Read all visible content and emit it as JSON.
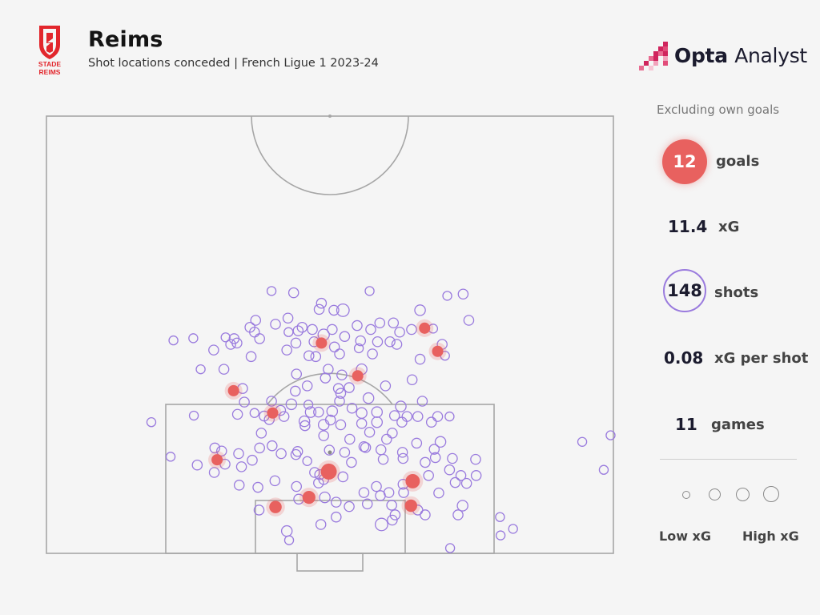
{
  "header": {
    "title": "Reims",
    "subtitle": "Shot locations conceded | French Ligue 1 2023-24",
    "club_logo_text": [
      "STADE",
      "REIMS"
    ],
    "brand_name": "Opta",
    "brand_suffix": "Analyst"
  },
  "stats": {
    "note": "Excluding own goals",
    "goals_value": "12",
    "goals_label": "goals",
    "xg_value": "11.4",
    "xg_label": "xG",
    "shots_value": "148",
    "shots_label": "shots",
    "xg_per_shot_value": "0.08",
    "xg_per_shot_label": "xG per shot",
    "games_value": "11",
    "games_label": "games"
  },
  "legend": {
    "low_label": "Low xG",
    "high_label": "High xG"
  },
  "colors": {
    "goal": "#e8615f",
    "shot": "#9a7bde",
    "pitch_line": "#a6a6a6",
    "brand": "#d0245d"
  },
  "chart_data": {
    "type": "scatter",
    "coordinate_system": "pitch half, goal line at y=100",
    "series": [
      {
        "name": "Goals",
        "points": [
          [
            48.5,
            51.9,
            0.05
          ],
          [
            66.7,
            48.5,
            0.05
          ],
          [
            54.9,
            59.4,
            0.05
          ],
          [
            33.0,
            62.8,
            0.05
          ],
          [
            69.0,
            53.8,
            0.05
          ],
          [
            39.9,
            67.9,
            0.05
          ],
          [
            30.1,
            78.6,
            0.05
          ],
          [
            49.8,
            81.3,
            0.15
          ],
          [
            64.6,
            83.5,
            0.11
          ],
          [
            46.3,
            87.2,
            0.08
          ],
          [
            40.4,
            89.4,
            0.07
          ],
          [
            64.3,
            89.1,
            0.07
          ]
        ]
      },
      {
        "name": "Shots",
        "points": [
          [
            39.7,
            40.0,
            0.02
          ],
          [
            43.6,
            40.4,
            0.03
          ],
          [
            57.0,
            40.0,
            0.02
          ],
          [
            73.5,
            40.7,
            0.03
          ],
          [
            70.7,
            41.1,
            0.02
          ],
          [
            48.5,
            42.8,
            0.03
          ],
          [
            52.3,
            44.4,
            0.07
          ],
          [
            65.9,
            44.4,
            0.04
          ],
          [
            50.7,
            44.4,
            0.03
          ],
          [
            48.1,
            44.2,
            0.03
          ],
          [
            42.6,
            46.2,
            0.03
          ],
          [
            36.9,
            46.7,
            0.03
          ],
          [
            74.5,
            46.7,
            0.03
          ],
          [
            58.8,
            47.3,
            0.03
          ],
          [
            61.2,
            47.3,
            0.03
          ],
          [
            40.4,
            47.6,
            0.03
          ],
          [
            54.8,
            47.9,
            0.03
          ],
          [
            35.9,
            48.3,
            0.03
          ],
          [
            45.1,
            48.3,
            0.03
          ],
          [
            50.4,
            48.8,
            0.03
          ],
          [
            57.2,
            48.8,
            0.03
          ],
          [
            64.4,
            48.8,
            0.03
          ],
          [
            68.2,
            48.6,
            0.02
          ],
          [
            44.4,
            49.1,
            0.03
          ],
          [
            46.9,
            48.8,
            0.03
          ],
          [
            62.3,
            49.4,
            0.03
          ],
          [
            36.7,
            49.4,
            0.03
          ],
          [
            42.7,
            49.4,
            0.02
          ],
          [
            48.9,
            50.0,
            0.05
          ],
          [
            52.6,
            50.4,
            0.03
          ],
          [
            37.6,
            50.9,
            0.03
          ],
          [
            33.1,
            50.9,
            0.03
          ],
          [
            31.6,
            50.6,
            0.02
          ],
          [
            22.4,
            51.3,
            0.02
          ],
          [
            25.9,
            50.8,
            0.02
          ],
          [
            47.2,
            51.6,
            0.03
          ],
          [
            55.4,
            51.4,
            0.03
          ],
          [
            58.4,
            51.6,
            0.03
          ],
          [
            60.6,
            51.6,
            0.03
          ],
          [
            61.8,
            52.2,
            0.03
          ],
          [
            32.5,
            52.2,
            0.03
          ],
          [
            33.6,
            51.9,
            0.03
          ],
          [
            44.0,
            51.9,
            0.03
          ],
          [
            69.8,
            52.2,
            0.03
          ],
          [
            50.8,
            52.8,
            0.03
          ],
          [
            55.1,
            53.1,
            0.02
          ],
          [
            29.5,
            53.5,
            0.03
          ],
          [
            42.4,
            53.5,
            0.03
          ],
          [
            47.5,
            55.0,
            0.03
          ],
          [
            51.7,
            54.4,
            0.03
          ],
          [
            57.5,
            54.4,
            0.03
          ],
          [
            46.3,
            54.8,
            0.03
          ],
          [
            70.3,
            54.8,
            0.02
          ],
          [
            65.9,
            55.6,
            0.03
          ],
          [
            36.1,
            55.0,
            0.03
          ],
          [
            27.2,
            57.9,
            0.02
          ],
          [
            31.3,
            57.9,
            0.03
          ],
          [
            49.7,
            57.9,
            0.03
          ],
          [
            55.6,
            57.9,
            0.04
          ],
          [
            44.1,
            59.0,
            0.03
          ],
          [
            52.1,
            59.2,
            0.03
          ],
          [
            49.2,
            59.9,
            0.03
          ],
          [
            64.5,
            60.3,
            0.03
          ],
          [
            46.0,
            61.7,
            0.03
          ],
          [
            51.5,
            62.3,
            0.03
          ],
          [
            53.4,
            62.1,
            0.03
          ],
          [
            59.8,
            61.7,
            0.03
          ],
          [
            34.6,
            62.3,
            0.03
          ],
          [
            43.9,
            62.9,
            0.03
          ],
          [
            51.9,
            63.4,
            0.03
          ],
          [
            56.8,
            64.5,
            0.04
          ],
          [
            51.7,
            65.2,
            0.03
          ],
          [
            66.3,
            65.2,
            0.03
          ],
          [
            39.7,
            65.2,
            0.03
          ],
          [
            34.9,
            65.4,
            0.03
          ],
          [
            46.2,
            66.0,
            0.02
          ],
          [
            43.2,
            65.9,
            0.04
          ],
          [
            62.5,
            66.4,
            0.04
          ],
          [
            53.9,
            66.8,
            0.03
          ],
          [
            50.4,
            67.5,
            0.04
          ],
          [
            46.6,
            67.7,
            0.04
          ],
          [
            48.0,
            67.7,
            0.03
          ],
          [
            41.3,
            67.3,
            0.03
          ],
          [
            55.6,
            67.9,
            0.04
          ],
          [
            58.3,
            67.7,
            0.04
          ],
          [
            41.9,
            68.7,
            0.03
          ],
          [
            38.4,
            68.6,
            0.03
          ],
          [
            71.1,
            68.7,
            0.02
          ],
          [
            63.6,
            68.7,
            0.03
          ],
          [
            61.4,
            68.5,
            0.03
          ],
          [
            65.5,
            68.7,
            0.03
          ],
          [
            69.0,
            68.7,
            0.03
          ],
          [
            33.7,
            68.2,
            0.03
          ],
          [
            36.7,
            67.9,
            0.02
          ],
          [
            45.5,
            69.8,
            0.04
          ],
          [
            50.1,
            69.5,
            0.03
          ],
          [
            48.9,
            70.6,
            0.04
          ],
          [
            55.6,
            70.3,
            0.03
          ],
          [
            58.3,
            70.0,
            0.04
          ],
          [
            62.7,
            70.0,
            0.03
          ],
          [
            67.9,
            70.0,
            0.03
          ],
          [
            39.3,
            69.4,
            0.03
          ],
          [
            45.6,
            70.8,
            0.03
          ],
          [
            51.9,
            70.6,
            0.03
          ],
          [
            48.9,
            73.1,
            0.03
          ],
          [
            57.0,
            72.3,
            0.03
          ],
          [
            61.0,
            72.5,
            0.03
          ],
          [
            37.9,
            72.5,
            0.03
          ],
          [
            53.5,
            73.9,
            0.03
          ],
          [
            60.0,
            73.9,
            0.03
          ],
          [
            69.5,
            74.5,
            0.04
          ],
          [
            65.3,
            74.8,
            0.03
          ],
          [
            39.8,
            75.4,
            0.03
          ],
          [
            56.0,
            75.6,
            0.03
          ],
          [
            37.6,
            75.9,
            0.03
          ],
          [
            29.7,
            75.9,
            0.03
          ],
          [
            30.9,
            76.6,
            0.03
          ],
          [
            33.9,
            77.2,
            0.03
          ],
          [
            41.4,
            77.2,
            0.03
          ],
          [
            44.0,
            77.4,
            0.03
          ],
          [
            44.3,
            76.7,
            0.03
          ],
          [
            49.9,
            76.4,
            0.03
          ],
          [
            52.6,
            76.9,
            0.03
          ],
          [
            56.3,
            75.8,
            0.03
          ],
          [
            59.0,
            76.3,
            0.03
          ],
          [
            62.8,
            76.9,
            0.03
          ],
          [
            68.4,
            76.2,
            0.03
          ],
          [
            21.9,
            77.9,
            0.02
          ],
          [
            36.3,
            78.7,
            0.03
          ],
          [
            46.0,
            78.9,
            0.02
          ],
          [
            59.4,
            78.5,
            0.03
          ],
          [
            62.9,
            78.3,
            0.03
          ],
          [
            68.6,
            78.1,
            0.03
          ],
          [
            71.6,
            78.3,
            0.03
          ],
          [
            75.7,
            78.5,
            0.03
          ],
          [
            66.8,
            79.2,
            0.03
          ],
          [
            53.8,
            79.2,
            0.03
          ],
          [
            34.4,
            80.2,
            0.03
          ],
          [
            31.5,
            79.6,
            0.03
          ],
          [
            26.6,
            79.8,
            0.03
          ],
          [
            29.6,
            81.5,
            0.03
          ],
          [
            47.3,
            81.5,
            0.03
          ],
          [
            48.2,
            82.0,
            0.03
          ],
          [
            52.3,
            82.5,
            0.03
          ],
          [
            67.4,
            82.2,
            0.03
          ],
          [
            73.1,
            82.2,
            0.03
          ],
          [
            75.8,
            82.2,
            0.03
          ],
          [
            71.1,
            80.9,
            0.03
          ],
          [
            48.9,
            83.1,
            0.03
          ],
          [
            40.3,
            83.4,
            0.03
          ],
          [
            48.0,
            83.9,
            0.03
          ],
          [
            62.9,
            84.2,
            0.03
          ],
          [
            58.2,
            84.7,
            0.03
          ],
          [
            72.1,
            83.8,
            0.03
          ],
          [
            74.1,
            84.0,
            0.03
          ],
          [
            34.0,
            84.4,
            0.03
          ],
          [
            37.3,
            84.9,
            0.03
          ],
          [
            44.1,
            84.7,
            0.03
          ],
          [
            56.0,
            86.1,
            0.03
          ],
          [
            60.4,
            86.1,
            0.03
          ],
          [
            63.0,
            86.1,
            0.03
          ],
          [
            69.2,
            86.2,
            0.03
          ],
          [
            58.9,
            86.8,
            0.03
          ],
          [
            44.5,
            87.6,
            0.03
          ],
          [
            49.1,
            87.2,
            0.04
          ],
          [
            51.1,
            88.3,
            0.03
          ],
          [
            53.4,
            89.3,
            0.03
          ],
          [
            56.6,
            88.7,
            0.03
          ],
          [
            60.9,
            89.0,
            0.03
          ],
          [
            73.4,
            89.1,
            0.04
          ],
          [
            65.5,
            90.1,
            0.03
          ],
          [
            37.5,
            90.1,
            0.03
          ],
          [
            66.8,
            91.2,
            0.03
          ],
          [
            72.6,
            91.2,
            0.03
          ],
          [
            51.1,
            91.7,
            0.03
          ],
          [
            61.5,
            91.2,
            0.03
          ],
          [
            61.0,
            92.4,
            0.03
          ],
          [
            59.1,
            93.4,
            0.07
          ],
          [
            48.4,
            93.4,
            0.03
          ],
          [
            42.4,
            94.9,
            0.04
          ],
          [
            80.0,
            91.7,
            0.02
          ],
          [
            42.8,
            97.0,
            0.02
          ],
          [
            71.2,
            98.8,
            0.02
          ],
          [
            82.3,
            94.4,
            0.02
          ],
          [
            80.1,
            95.9,
            0.02
          ],
          [
            94.5,
            74.5,
            0.02
          ],
          [
            99.5,
            73.0,
            0.02
          ],
          [
            98.3,
            80.9,
            0.02
          ],
          [
            18.5,
            70.0,
            0.02
          ],
          [
            26.0,
            68.5,
            0.02
          ]
        ]
      }
    ]
  }
}
